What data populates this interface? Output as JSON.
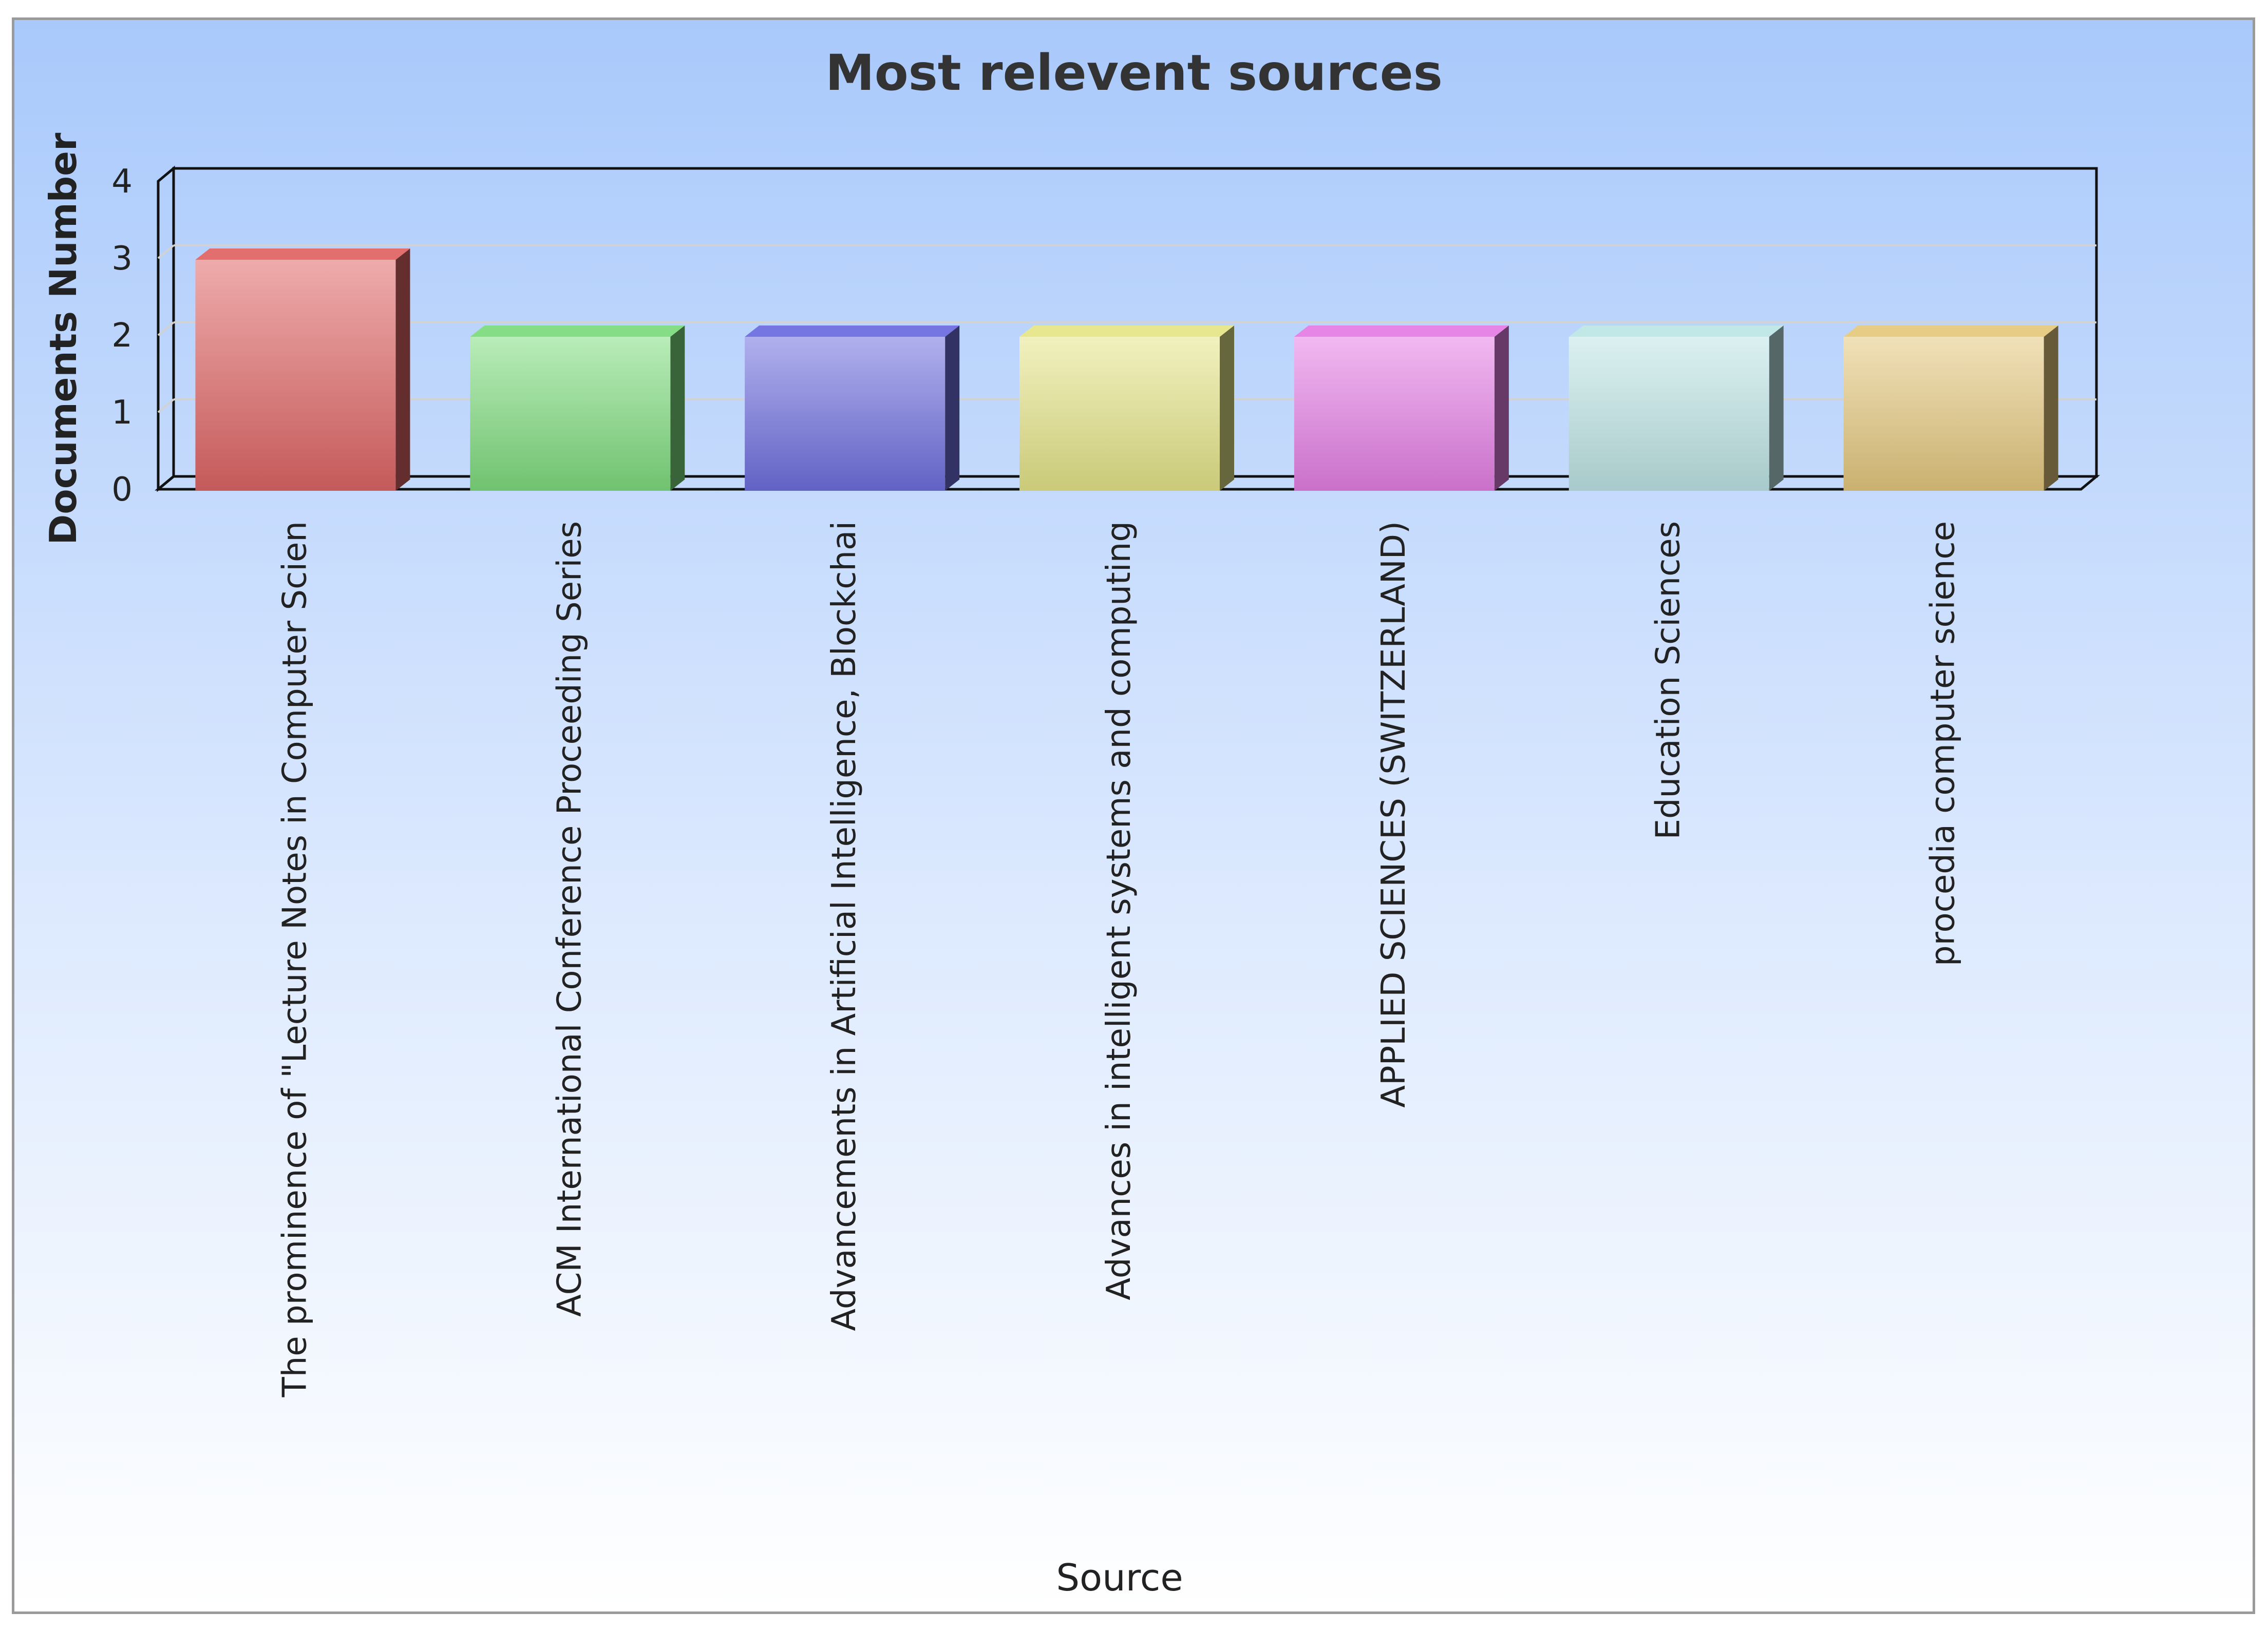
{
  "chart_data": {
    "type": "bar",
    "title": "Most relevent sources",
    "xlabel": "Source",
    "ylabel": "Documents Number",
    "categories": [
      "The prominence of \"Lecture Notes in Computer Scien",
      "ACM International Conference Proceeding Series",
      "Advancements in Artificial Intelligence, Blockchai",
      "Advances in intelligent systems and computing",
      "APPLIED SCIENCES (SWITZERLAND)",
      "Education Sciences",
      "procedia computer science"
    ],
    "values": [
      3,
      2,
      2,
      2,
      2,
      2,
      2
    ],
    "ylim": [
      0,
      4
    ],
    "yticks": [
      0,
      1,
      2,
      3,
      4
    ],
    "colors": [
      "#e06666",
      "#7fdc7f",
      "#6f6fe0",
      "#e6e68a",
      "#e67fe6",
      "#bfe6e6",
      "#e6c97f"
    ],
    "grid": true,
    "legend": "none",
    "style": "3d"
  }
}
